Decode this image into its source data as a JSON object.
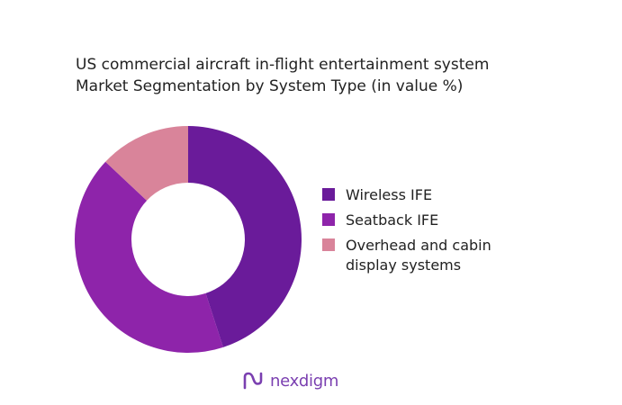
{
  "title_line1": "US commercial aircraft in-flight entertainment system",
  "title_line2": "Market Segmentation by System Type (in value %)",
  "brand": {
    "name": "nexdigm",
    "icon": "nexdigm-logo-icon",
    "color": "#7a3fb0"
  },
  "chart_data": {
    "type": "pie",
    "variant": "donut",
    "title": "US commercial aircraft in-flight entertainment system Market Segmentation by System Type (in value %)",
    "unit": "%",
    "categories": [
      "Wireless IFE",
      "Seatback IFE",
      "Overhead and cabin display systems"
    ],
    "values": [
      45,
      42,
      13
    ],
    "colors": [
      "#6a1b9a",
      "#8e24aa",
      "#d9849a"
    ],
    "legend_position": "right"
  }
}
